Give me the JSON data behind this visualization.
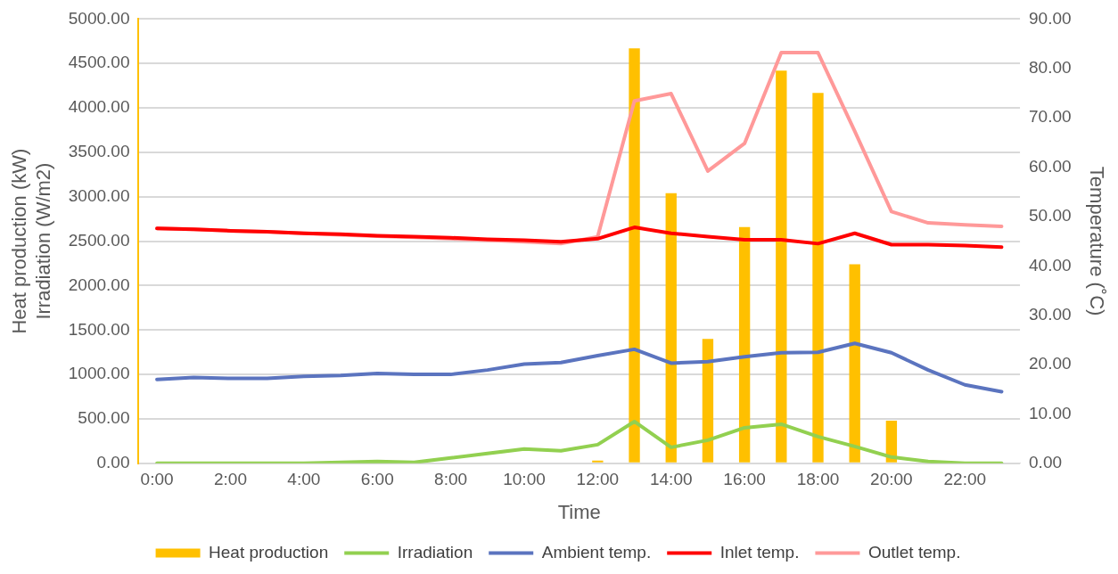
{
  "chart_data": {
    "type": "bar",
    "xlabel": "Time",
    "ylabel": "Heat production (kW)\nIrradiation (W/m2)",
    "y2label": "Temperature (˚C)",
    "categories": [
      "0:00",
      null,
      "2:00",
      null,
      "4:00",
      null,
      "6:00",
      null,
      "8:00",
      null,
      "10:00",
      null,
      "12:00",
      null,
      "14:00",
      null,
      "16:00",
      null,
      "18:00",
      null,
      "20:00",
      null,
      "22:00",
      null
    ],
    "series": [
      {
        "name": "Heat production",
        "color": "#ffc000",
        "values": [
          0,
          0,
          0,
          0,
          0,
          0,
          0,
          0,
          0,
          0,
          0,
          0,
          30,
          4670,
          3040,
          1400,
          2660,
          4420,
          4170,
          2240,
          480,
          0,
          0,
          0
        ]
      },
      {
        "name": "Irradiation",
        "type": "line",
        "color": "#92d050",
        "values": [
          0,
          0,
          0,
          0,
          0,
          10,
          20,
          10,
          60,
          110,
          160,
          140,
          210,
          470,
          180,
          260,
          400,
          440,
          300,
          190,
          70,
          20,
          0,
          0
        ]
      },
      {
        "name": "Ambient temp.",
        "type": "line",
        "axis": "y2",
        "color": "#5b74bf",
        "values": [
          17.0,
          17.4,
          17.2,
          17.2,
          17.6,
          17.8,
          18.2,
          18.0,
          18.0,
          18.9,
          20.1,
          20.4,
          21.8,
          23.1,
          20.3,
          20.6,
          21.6,
          22.4,
          22.5,
          24.3,
          22.4,
          18.9,
          15.9,
          14.5
        ]
      },
      {
        "name": "Inlet temp.",
        "type": "line",
        "axis": "y2",
        "color": "#ff0000",
        "values": [
          47.6,
          47.4,
          47.1,
          46.9,
          46.6,
          46.4,
          46.1,
          45.9,
          45.7,
          45.4,
          45.2,
          44.9,
          45.5,
          47.8,
          46.6,
          45.9,
          45.3,
          45.3,
          44.5,
          46.6,
          44.3,
          44.3,
          44.1,
          43.8
        ]
      },
      {
        "name": "Outlet temp.",
        "type": "line",
        "axis": "y2",
        "color": "#ff9999",
        "values": [
          47.6,
          47.4,
          47.1,
          46.9,
          46.6,
          46.3,
          46.0,
          45.8,
          45.5,
          45.2,
          44.9,
          44.5,
          45.9,
          73.4,
          74.9,
          59.2,
          64.8,
          83.2,
          83.2,
          67.3,
          51.0,
          48.7,
          48.3,
          48.0
        ]
      }
    ],
    "ylim": [
      0,
      5000
    ],
    "yticks": [
      {
        "value": 0,
        "label": "0.00"
      },
      {
        "value": 500,
        "label": "500.00"
      },
      {
        "value": 1000,
        "label": "1000.00"
      },
      {
        "value": 1500,
        "label": "1500.00"
      },
      {
        "value": 2000,
        "label": "2000.00"
      },
      {
        "value": 2500,
        "label": "2500.00"
      },
      {
        "value": 3000,
        "label": "3000.00"
      },
      {
        "value": 3500,
        "label": "3500.00"
      },
      {
        "value": 4000,
        "label": "4000.00"
      },
      {
        "value": 4500,
        "label": "4500.00"
      },
      {
        "value": 5000,
        "label": "5000.00"
      }
    ],
    "y2lim": [
      0,
      90
    ],
    "y2ticks": [
      {
        "value": 0,
        "label": "0.00"
      },
      {
        "value": 10,
        "label": "10.00"
      },
      {
        "value": 20,
        "label": "20.00"
      },
      {
        "value": 30,
        "label": "30.00"
      },
      {
        "value": 40,
        "label": "40.00"
      },
      {
        "value": 50,
        "label": "50.00"
      },
      {
        "value": 60,
        "label": "60.00"
      },
      {
        "value": 70,
        "label": "70.00"
      },
      {
        "value": 80,
        "label": "80.00"
      },
      {
        "value": 90,
        "label": "90.00"
      }
    ],
    "grid": "y",
    "legend": "bottom",
    "marker": "none",
    "line_style": "solid"
  }
}
